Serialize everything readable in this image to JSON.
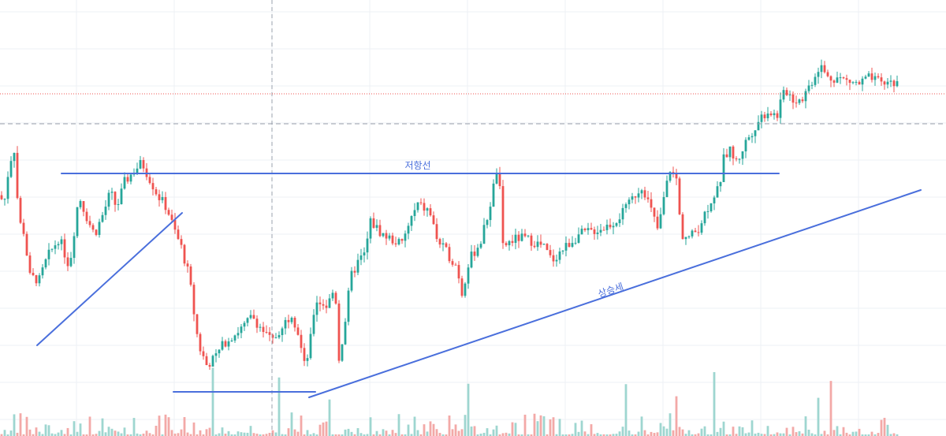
{
  "colors": {
    "up": "#26a69a",
    "down": "#ef5350",
    "up_volume": "#9ed6d0",
    "down_volume": "#f3a9a7",
    "drawing": "#4a6fdc",
    "grid": "#eef0f4",
    "background": "#ffffff"
  },
  "chart_data": {
    "type": "candlestick",
    "title": "",
    "xlabel": "",
    "ylabel": "",
    "grid": true,
    "legend": "none",
    "ylim": [
      0,
      100
    ],
    "close_path": [
      [
        0,
        60
      ],
      [
        5,
        57
      ],
      [
        12,
        70
      ],
      [
        18,
        74
      ],
      [
        24,
        52
      ],
      [
        30,
        49
      ],
      [
        38,
        35
      ],
      [
        50,
        34
      ],
      [
        60,
        41
      ],
      [
        75,
        47
      ],
      [
        88,
        38
      ],
      [
        100,
        60
      ],
      [
        112,
        52
      ],
      [
        120,
        48
      ],
      [
        132,
        55
      ],
      [
        140,
        61
      ],
      [
        148,
        56
      ],
      [
        158,
        64
      ],
      [
        172,
        68
      ],
      [
        180,
        70
      ],
      [
        190,
        65
      ],
      [
        200,
        60
      ],
      [
        212,
        56
      ],
      [
        220,
        50
      ],
      [
        230,
        44
      ],
      [
        240,
        35
      ],
      [
        246,
        24
      ],
      [
        252,
        14
      ],
      [
        262,
        8
      ],
      [
        272,
        10
      ],
      [
        285,
        15
      ],
      [
        295,
        17
      ],
      [
        310,
        20
      ],
      [
        320,
        23
      ],
      [
        335,
        18
      ],
      [
        345,
        15
      ],
      [
        358,
        20
      ],
      [
        370,
        24
      ],
      [
        378,
        18
      ],
      [
        386,
        8
      ],
      [
        392,
        12
      ],
      [
        400,
        28
      ],
      [
        415,
        26
      ],
      [
        425,
        32
      ],
      [
        430,
        10
      ],
      [
        436,
        18
      ],
      [
        445,
        35
      ],
      [
        455,
        40
      ],
      [
        463,
        42
      ],
      [
        470,
        52
      ],
      [
        485,
        48
      ],
      [
        500,
        46
      ],
      [
        510,
        45
      ],
      [
        520,
        52
      ],
      [
        530,
        57
      ],
      [
        545,
        55
      ],
      [
        555,
        46
      ],
      [
        568,
        42
      ],
      [
        580,
        38
      ],
      [
        586,
        30
      ],
      [
        595,
        40
      ],
      [
        610,
        46
      ],
      [
        620,
        55
      ],
      [
        628,
        65
      ],
      [
        632,
        70
      ],
      [
        638,
        44
      ],
      [
        648,
        46
      ],
      [
        660,
        47
      ],
      [
        675,
        46
      ],
      [
        690,
        44
      ],
      [
        700,
        40
      ],
      [
        712,
        43
      ],
      [
        725,
        46
      ],
      [
        735,
        48
      ],
      [
        750,
        49
      ],
      [
        765,
        50
      ],
      [
        780,
        52
      ],
      [
        795,
        56
      ],
      [
        805,
        60
      ],
      [
        815,
        63
      ],
      [
        825,
        56
      ],
      [
        835,
        49
      ],
      [
        842,
        59
      ],
      [
        850,
        68
      ],
      [
        858,
        65
      ],
      [
        864,
        48
      ],
      [
        875,
        47
      ],
      [
        886,
        50
      ],
      [
        895,
        55
      ],
      [
        905,
        60
      ],
      [
        912,
        62
      ],
      [
        918,
        71
      ],
      [
        925,
        74
      ],
      [
        935,
        70
      ],
      [
        945,
        76
      ],
      [
        955,
        80
      ],
      [
        965,
        84
      ],
      [
        975,
        86
      ],
      [
        985,
        84
      ],
      [
        992,
        90
      ],
      [
        998,
        92
      ],
      [
        1008,
        89
      ],
      [
        1018,
        90
      ],
      [
        1030,
        95
      ],
      [
        1040,
        100
      ],
      [
        1050,
        96
      ],
      [
        1062,
        96
      ],
      [
        1075,
        95
      ],
      [
        1090,
        94
      ],
      [
        1100,
        96
      ],
      [
        1110,
        95
      ],
      [
        1120,
        94
      ],
      [
        1130,
        95
      ],
      [
        1138,
        94
      ]
    ],
    "drawings": [
      {
        "name": "resistance",
        "label": "저항선"
      },
      {
        "name": "uptrend",
        "label": "상승세"
      },
      {
        "name": "early-uptrend",
        "label": ""
      },
      {
        "name": "support",
        "label": ""
      }
    ],
    "annotations": [
      "저항선",
      "상승세"
    ]
  }
}
